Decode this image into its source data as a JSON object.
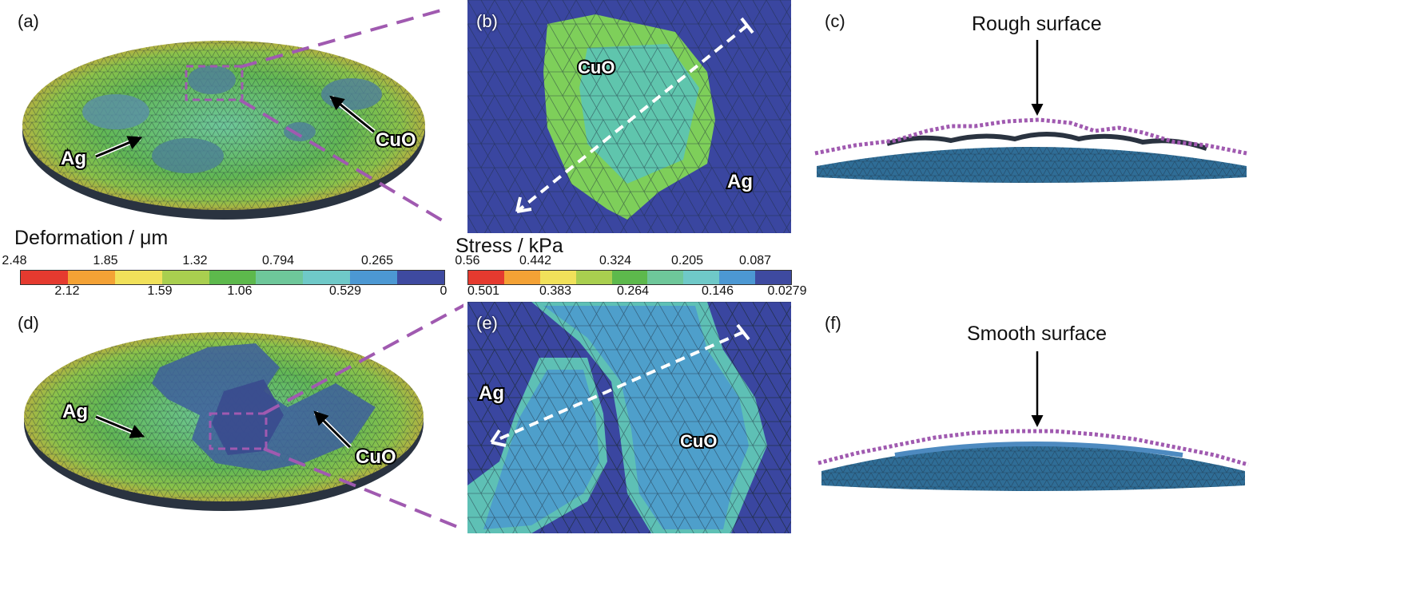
{
  "panels": {
    "a": "(a)",
    "b": "(b)",
    "c": "(c)",
    "d": "(d)",
    "e": "(e)",
    "f": "(f)"
  },
  "labels": {
    "ag": "Ag",
    "cuo": "CuO",
    "rough": "Rough surface",
    "smooth": "Smooth surface"
  },
  "deformation": {
    "title": "Deformation / μm",
    "ticks_top": [
      "2.48",
      "1.85",
      "1.32",
      "0.794",
      "0.265"
    ],
    "ticks_bottom": [
      "2.12",
      "1.59",
      "1.06",
      "0.529",
      "0"
    ],
    "colors": [
      "#e53a2f",
      "#f4a235",
      "#f1e15a",
      "#a9cf4f",
      "#5db94c",
      "#6ec79a",
      "#6fc9c8",
      "#4c98d3",
      "#3e4aa0"
    ]
  },
  "stress": {
    "title": "Stress / kPa",
    "ticks_top": [
      "0.56",
      "0.442",
      "0.324",
      "0.205",
      "0.087"
    ],
    "ticks_bottom": [
      "0.501",
      "0.383",
      "0.264",
      "0.146",
      "0.0279"
    ],
    "colors": [
      "#e53a2f",
      "#f4a235",
      "#f1e15a",
      "#a9cf4f",
      "#5db94c",
      "#6ec79a",
      "#6fc9c8",
      "#4c98d3",
      "#3e4aa0"
    ]
  }
}
